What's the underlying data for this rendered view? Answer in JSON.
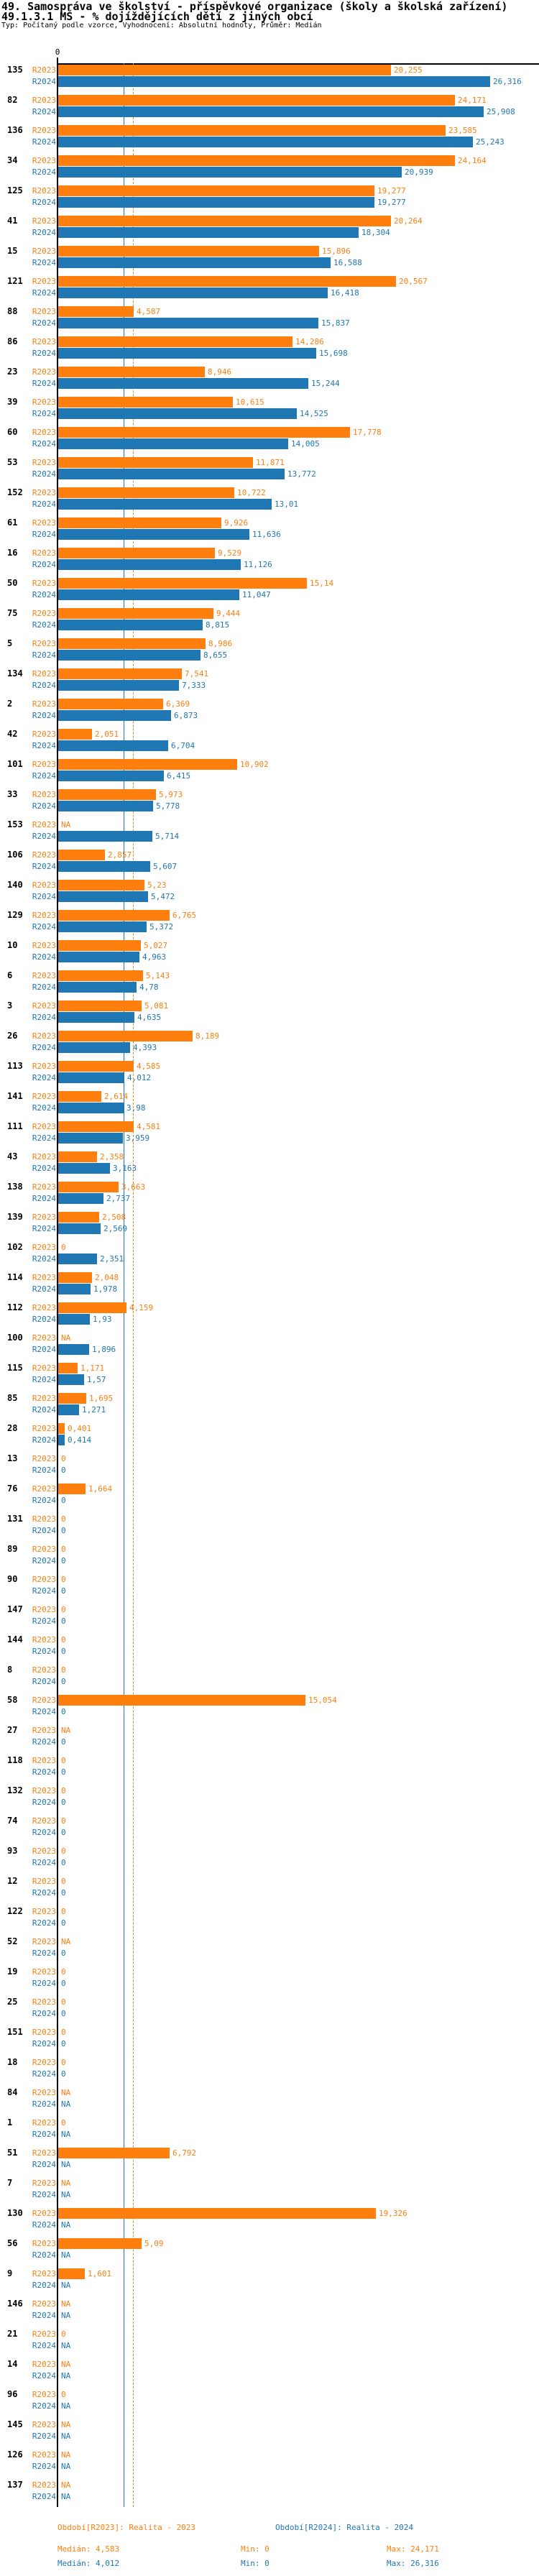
{
  "header": {
    "title": "49. Samospráva ve školství - příspěvkové organizace (školy a školská zařízení)",
    "subtitle": "49.1.3.1 MŠ - % dojíždějících dětí z jiných obcí",
    "meta": "Typ: Počítaný podle vzorce, Vyhodnocení: Absolutní hodnoty, Průměr: Medián"
  },
  "footer": {
    "legend_r2023": "Období[R2023]: Realita - 2023",
    "legend_r2024": "Období[R2024]: Realita - 2024",
    "stats_r2023": {
      "median": "Medián: 4,583",
      "min": "Min: 0",
      "max": "Max: 24,171"
    },
    "stats_r2024": {
      "median": "Medián: 4,012",
      "min": "Min: 0",
      "max": "Max: 26,316"
    }
  },
  "colors": {
    "r2023": "#ff7f0e",
    "r2024": "#1f77b4",
    "axis": "#000000"
  },
  "chart_data": {
    "type": "bar",
    "orientation": "horizontal",
    "title": "49.1.3.1 MŠ - % dojíždějících dětí z jiných obcí",
    "x_axis_zero_label": "0",
    "xlim": [
      0,
      29.3
    ],
    "grid": false,
    "value_format": "decimal-comma",
    "na_text": "NA",
    "legend_position": "bottom",
    "series": [
      {
        "name": "R2023",
        "period_label": "Realita - 2023",
        "color": "#ff7f0e",
        "median": 4.583,
        "min": 0,
        "max": 24.171
      },
      {
        "name": "R2024",
        "period_label": "Realita - 2024",
        "color": "#1f77b4",
        "median": 4.012,
        "min": 0,
        "max": 26.316
      }
    ],
    "rows_format": [
      "row_id",
      "R2023",
      "R2024"
    ],
    "rows": [
      [
        "135",
        20.255,
        26.316
      ],
      [
        "82",
        24.171,
        25.908
      ],
      [
        "136",
        23.585,
        25.243
      ],
      [
        "34",
        24.164,
        20.939
      ],
      [
        "125",
        19.277,
        19.277
      ],
      [
        "41",
        20.264,
        18.304
      ],
      [
        "15",
        15.896,
        16.588
      ],
      [
        "121",
        20.567,
        16.418
      ],
      [
        "88",
        4.587,
        15.837
      ],
      [
        "86",
        14.286,
        15.698
      ],
      [
        "23",
        8.946,
        15.244
      ],
      [
        "39",
        10.615,
        14.525
      ],
      [
        "60",
        17.778,
        14.005
      ],
      [
        "53",
        11.871,
        13.772
      ],
      [
        "152",
        10.722,
        13.01
      ],
      [
        "61",
        9.926,
        11.636
      ],
      [
        "16",
        9.529,
        11.126
      ],
      [
        "50",
        15.14,
        11.047
      ],
      [
        "75",
        9.444,
        8.815
      ],
      [
        "5",
        8.986,
        8.655
      ],
      [
        "134",
        7.541,
        7.333
      ],
      [
        "2",
        6.369,
        6.873
      ],
      [
        "42",
        2.051,
        6.704
      ],
      [
        "101",
        10.902,
        6.415
      ],
      [
        "33",
        5.973,
        5.778
      ],
      [
        "153",
        null,
        5.714
      ],
      [
        "106",
        2.857,
        5.607
      ],
      [
        "140",
        5.23,
        5.472
      ],
      [
        "129",
        6.765,
        5.372
      ],
      [
        "10",
        5.027,
        4.963
      ],
      [
        "6",
        5.143,
        4.78
      ],
      [
        "3",
        5.081,
        4.635
      ],
      [
        "26",
        8.189,
        4.393
      ],
      [
        "113",
        4.585,
        4.012
      ],
      [
        "141",
        2.614,
        3.98
      ],
      [
        "111",
        4.581,
        3.959
      ],
      [
        "43",
        2.358,
        3.163
      ],
      [
        "138",
        3.663,
        2.737
      ],
      [
        "139",
        2.508,
        2.569
      ],
      [
        "102",
        0,
        2.351
      ],
      [
        "114",
        2.048,
        1.978
      ],
      [
        "112",
        4.159,
        1.93
      ],
      [
        "100",
        null,
        1.896
      ],
      [
        "115",
        1.171,
        1.57
      ],
      [
        "85",
        1.695,
        1.271
      ],
      [
        "28",
        0.401,
        0.414
      ],
      [
        "13",
        0,
        0
      ],
      [
        "76",
        1.664,
        0
      ],
      [
        "131",
        0,
        0
      ],
      [
        "89",
        0,
        0
      ],
      [
        "90",
        0,
        0
      ],
      [
        "147",
        0,
        0
      ],
      [
        "144",
        0,
        0
      ],
      [
        "8",
        0,
        0
      ],
      [
        "58",
        15.054,
        0
      ],
      [
        "27",
        null,
        0
      ],
      [
        "118",
        0,
        0
      ],
      [
        "132",
        0,
        0
      ],
      [
        "74",
        0,
        0
      ],
      [
        "93",
        0,
        0
      ],
      [
        "12",
        0,
        0
      ],
      [
        "122",
        0,
        0
      ],
      [
        "52",
        null,
        0
      ],
      [
        "19",
        0,
        0
      ],
      [
        "25",
        0,
        0
      ],
      [
        "151",
        0,
        0
      ],
      [
        "18",
        0,
        0
      ],
      [
        "84",
        null,
        null
      ],
      [
        "1",
        0,
        null
      ],
      [
        "51",
        6.792,
        null
      ],
      [
        "7",
        null,
        null
      ],
      [
        "130",
        19.326,
        null
      ],
      [
        "56",
        5.09,
        null
      ],
      [
        "9",
        1.601,
        null
      ],
      [
        "146",
        null,
        null
      ],
      [
        "21",
        0,
        null
      ],
      [
        "14",
        null,
        null
      ],
      [
        "96",
        0,
        null
      ],
      [
        "145",
        null,
        null
      ],
      [
        "126",
        null,
        null
      ],
      [
        "137",
        null,
        null
      ]
    ]
  }
}
